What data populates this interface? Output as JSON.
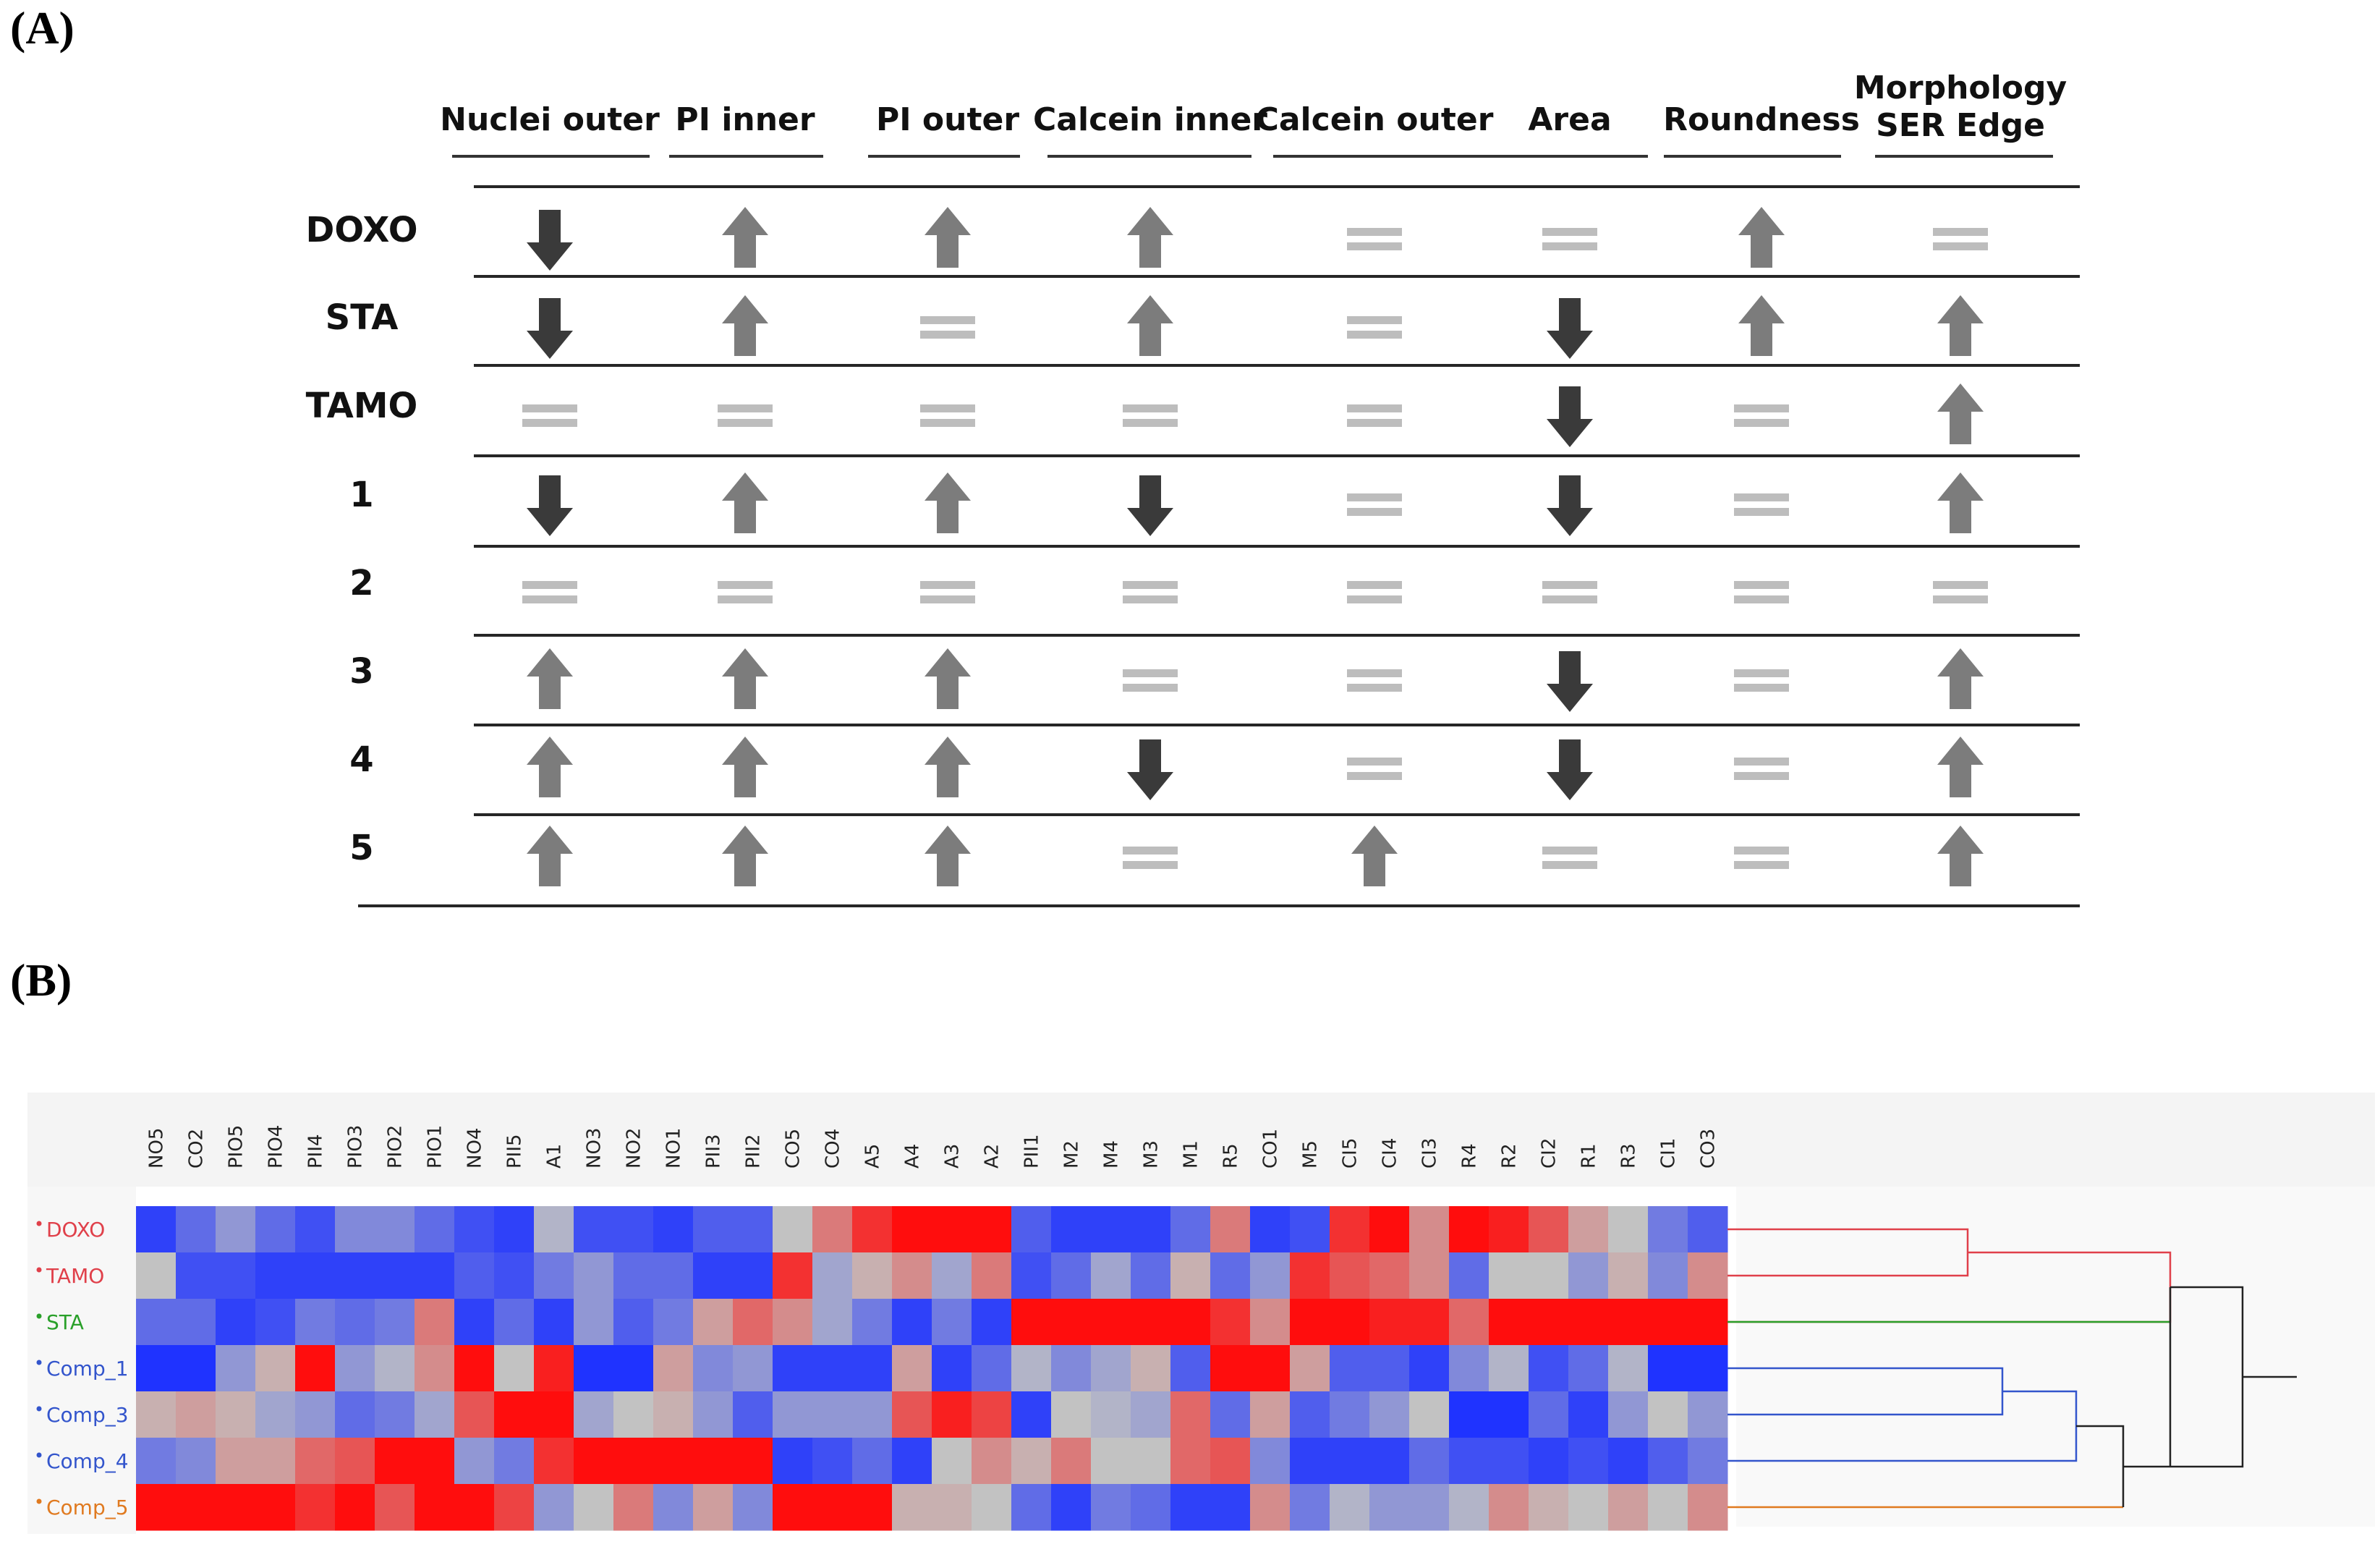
{
  "panel_a_label": "(A)",
  "panel_b_label": "(B)",
  "chart_data": [
    {
      "type": "table",
      "columns": [
        "Nuclei outer",
        "PI inner",
        "PI outer",
        "Calcein inner",
        "Calcein outer",
        "Area",
        "Roundness",
        "Morphology SER Edge"
      ],
      "column_lines": [
        [
          "Nuclei outer"
        ],
        [
          "PI inner"
        ],
        [
          "PI outer"
        ],
        [
          "Calcein inner"
        ],
        [
          "Calcein outer"
        ],
        [
          "Area"
        ],
        [
          "Roundness"
        ],
        [
          "Morphology",
          "SER Edge"
        ]
      ],
      "rows": [
        {
          "label": "DOXO",
          "values": [
            "down",
            "up",
            "up",
            "up",
            "equal",
            "equal",
            "up",
            "equal"
          ]
        },
        {
          "label": "STA",
          "values": [
            "down",
            "up",
            "equal",
            "up",
            "equal",
            "down",
            "up",
            "up"
          ]
        },
        {
          "label": "TAMO",
          "values": [
            "equal",
            "equal",
            "equal",
            "equal",
            "equal",
            "down",
            "equal",
            "up"
          ]
        },
        {
          "label": "1",
          "values": [
            "down",
            "up",
            "up",
            "down",
            "equal",
            "down",
            "equal",
            "up"
          ]
        },
        {
          "label": "2",
          "values": [
            "equal",
            "equal",
            "equal",
            "equal",
            "equal",
            "equal",
            "equal",
            "equal"
          ]
        },
        {
          "label": "3",
          "values": [
            "up",
            "up",
            "up",
            "equal",
            "equal",
            "down",
            "equal",
            "up"
          ]
        },
        {
          "label": "4",
          "values": [
            "up",
            "up",
            "up",
            "down",
            "equal",
            "down",
            "equal",
            "up"
          ]
        },
        {
          "label": "5",
          "values": [
            "up",
            "up",
            "up",
            "equal",
            "up",
            "equal",
            "equal",
            "up"
          ]
        }
      ],
      "symbol_colors": {
        "down": "#3a3a3a",
        "up": "#7c7c7c",
        "equal": "#bdbdbd"
      }
    },
    {
      "type": "heatmap",
      "x": [
        "NO5",
        "CO2",
        "PIO5",
        "PIO4",
        "PII4",
        "PIO3",
        "PIO2",
        "PIO1",
        "NO4",
        "PII5",
        "A1",
        "NO3",
        "NO2",
        "NO1",
        "PII3",
        "PII2",
        "CO5",
        "CO4",
        "A5",
        "A4",
        "A3",
        "A2",
        "PII1",
        "M2",
        "M4",
        "M3",
        "M1",
        "R5",
        "CO1",
        "M5",
        "CI5",
        "CI4",
        "CI3",
        "R4",
        "R2",
        "CI2",
        "R1",
        "R3",
        "CI1",
        "CO3"
      ],
      "y": [
        "DOXO",
        "TAMO",
        "STA",
        "Comp_1",
        "Comp_3",
        "Comp_4",
        "Comp_5"
      ],
      "row_colors": [
        "#e0404a",
        "#e0404a",
        "#2aa02a",
        "#3355cc",
        "#3355cc",
        "#3355cc",
        "#e07a20"
      ],
      "values": [
        [
          -0.9,
          -0.6,
          -0.3,
          -0.6,
          -0.8,
          -0.4,
          -0.4,
          -0.6,
          -0.8,
          -0.9,
          -0.1,
          -0.8,
          -0.8,
          -0.9,
          -0.7,
          -0.7,
          0.0,
          0.4,
          0.8,
          1.0,
          1.0,
          1.0,
          -0.7,
          -0.9,
          -0.9,
          -0.9,
          -0.6,
          0.4,
          -0.9,
          -0.8,
          0.8,
          1.0,
          0.3,
          1.0,
          0.9,
          0.6,
          0.2,
          0.0,
          -0.5,
          -0.7
        ],
        [
          0.0,
          -0.8,
          -0.8,
          -0.9,
          -0.9,
          -0.9,
          -0.9,
          -0.9,
          -0.7,
          -0.8,
          -0.5,
          -0.3,
          -0.6,
          -0.6,
          -0.9,
          -0.9,
          0.8,
          -0.2,
          0.1,
          0.3,
          -0.2,
          0.4,
          -0.8,
          -0.6,
          -0.2,
          -0.6,
          0.1,
          -0.6,
          -0.3,
          0.8,
          0.6,
          0.5,
          0.3,
          -0.6,
          0.0,
          0.0,
          -0.3,
          0.1,
          -0.4,
          0.3
        ],
        [
          -0.6,
          -0.6,
          -0.9,
          -0.8,
          -0.5,
          -0.6,
          -0.5,
          0.4,
          -0.9,
          -0.6,
          -0.9,
          -0.3,
          -0.7,
          -0.5,
          0.2,
          0.5,
          0.3,
          -0.2,
          -0.5,
          -0.9,
          -0.5,
          -0.9,
          1.0,
          1.0,
          1.0,
          1.0,
          1.0,
          0.8,
          0.3,
          1.0,
          1.0,
          0.9,
          0.9,
          0.5,
          1.0,
          1.0,
          1.0,
          1.0,
          1.0,
          1.0
        ],
        [
          -1.0,
          -1.0,
          -0.3,
          0.1,
          1.0,
          -0.3,
          -0.1,
          0.3,
          1.0,
          0.0,
          0.9,
          -1.0,
          -1.0,
          0.2,
          -0.4,
          -0.3,
          -0.9,
          -0.9,
          -0.9,
          0.2,
          -0.9,
          -0.6,
          -0.1,
          -0.4,
          -0.2,
          0.1,
          -0.7,
          1.0,
          1.0,
          0.2,
          -0.7,
          -0.7,
          -0.9,
          -0.4,
          -0.1,
          -0.8,
          -0.6,
          -0.1,
          -1.0,
          -1.0
        ],
        [
          0.1,
          0.2,
          0.1,
          -0.2,
          -0.3,
          -0.6,
          -0.5,
          -0.2,
          0.6,
          1.0,
          1.0,
          -0.2,
          0.0,
          0.1,
          -0.3,
          -0.7,
          -0.3,
          -0.3,
          -0.3,
          0.6,
          0.9,
          0.7,
          -0.9,
          0.0,
          -0.1,
          -0.2,
          0.5,
          -0.6,
          0.2,
          -0.7,
          -0.5,
          -0.3,
          0.0,
          -1.0,
          -1.0,
          -0.6,
          -0.9,
          -0.3,
          0.0,
          -0.3
        ],
        [
          -0.5,
          -0.4,
          0.2,
          0.2,
          0.5,
          0.6,
          1.0,
          1.0,
          -0.3,
          -0.5,
          0.8,
          1.0,
          1.0,
          1.0,
          1.0,
          1.0,
          -0.9,
          -0.8,
          -0.6,
          -0.9,
          0.0,
          0.3,
          0.1,
          0.4,
          0.0,
          0.0,
          0.5,
          0.6,
          -0.4,
          -0.9,
          -0.9,
          -0.9,
          -0.6,
          -0.8,
          -0.8,
          -0.9,
          -0.8,
          -0.9,
          -0.7,
          -0.5
        ],
        [
          1.0,
          1.0,
          1.0,
          1.0,
          0.8,
          1.0,
          0.6,
          1.0,
          1.0,
          0.7,
          -0.3,
          0.0,
          0.4,
          -0.4,
          0.2,
          -0.4,
          1.0,
          1.0,
          1.0,
          0.1,
          0.1,
          0.0,
          -0.6,
          -0.9,
          -0.5,
          -0.6,
          -0.9,
          -0.9,
          0.3,
          -0.5,
          -0.1,
          -0.3,
          -0.3,
          -0.1,
          0.3,
          0.1,
          0.0,
          0.2,
          0.0,
          0.3
        ]
      ],
      "color_scale": {
        "low": "#1f33ff",
        "mid": "#c2c2c2",
        "high": "#ff0d0d",
        "range": [
          -1,
          1
        ]
      },
      "row_dendrogram_colors": [
        "#e0404a",
        "#2aa02a",
        "#3355cc",
        "#e07a20",
        "#222222"
      ]
    }
  ]
}
